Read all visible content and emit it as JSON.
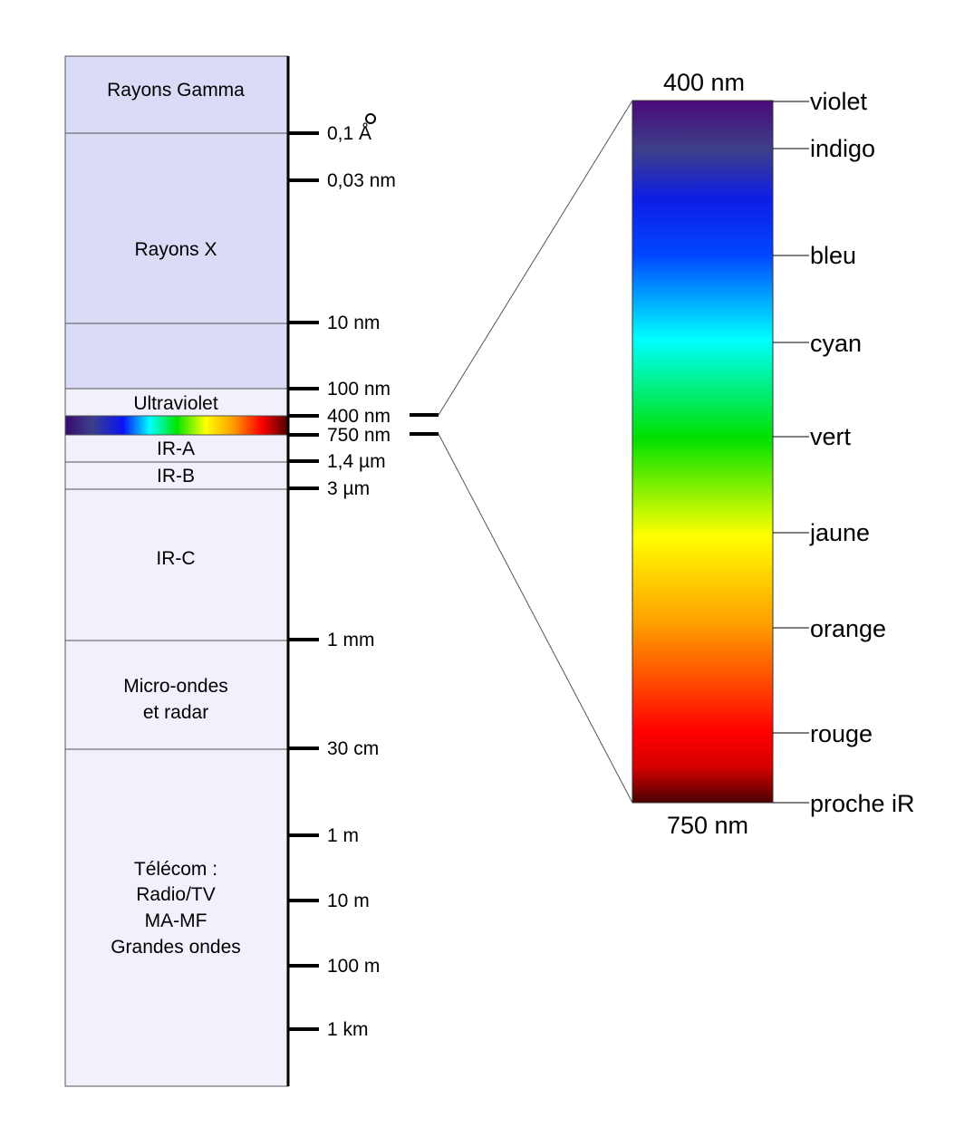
{
  "colors": {
    "band_fill_dark": "#d9dbf7",
    "band_fill_light": "#f1f1fb",
    "axis": "#000000",
    "border": "#555555"
  },
  "bands": [
    {
      "id": "gamma",
      "lines": [
        "Rayons Gamma"
      ],
      "tone": "dark"
    },
    {
      "id": "xray",
      "lines": [
        "Rayons X"
      ],
      "tone": "dark"
    },
    {
      "id": "euv",
      "lines": [],
      "tone": "dark"
    },
    {
      "id": "uv",
      "lines": [
        "Ultraviolet"
      ],
      "tone": "light"
    },
    {
      "id": "visible",
      "lines": [],
      "tone": "spectrum"
    },
    {
      "id": "ira",
      "lines": [
        "IR-A"
      ],
      "tone": "light"
    },
    {
      "id": "irb",
      "lines": [
        "IR-B"
      ],
      "tone": "light"
    },
    {
      "id": "irc",
      "lines": [
        "IR-C"
      ],
      "tone": "light"
    },
    {
      "id": "micro",
      "lines": [
        "Micro-ondes",
        "et radar"
      ],
      "tone": "light"
    },
    {
      "id": "telecom",
      "lines": [
        "Télécom :",
        "Radio/TV",
        "MA-MF",
        "Grandes ondes"
      ],
      "tone": "light"
    }
  ],
  "scale_ticks": [
    "0,1 Å",
    "0,03 nm",
    "10 nm",
    "100 nm",
    "400 nm",
    "750 nm",
    "1,4 µm",
    "3 µm",
    "1 mm",
    "30 cm",
    "1 m",
    "10 m",
    "100 m",
    "1 km"
  ],
  "visible_spectrum": {
    "top_label": "400 nm",
    "bottom_label": "750 nm",
    "colors": [
      "violet",
      "indigo",
      "bleu",
      "cyan",
      "vert",
      "jaune",
      "orange",
      "rouge",
      "proche iR"
    ]
  }
}
